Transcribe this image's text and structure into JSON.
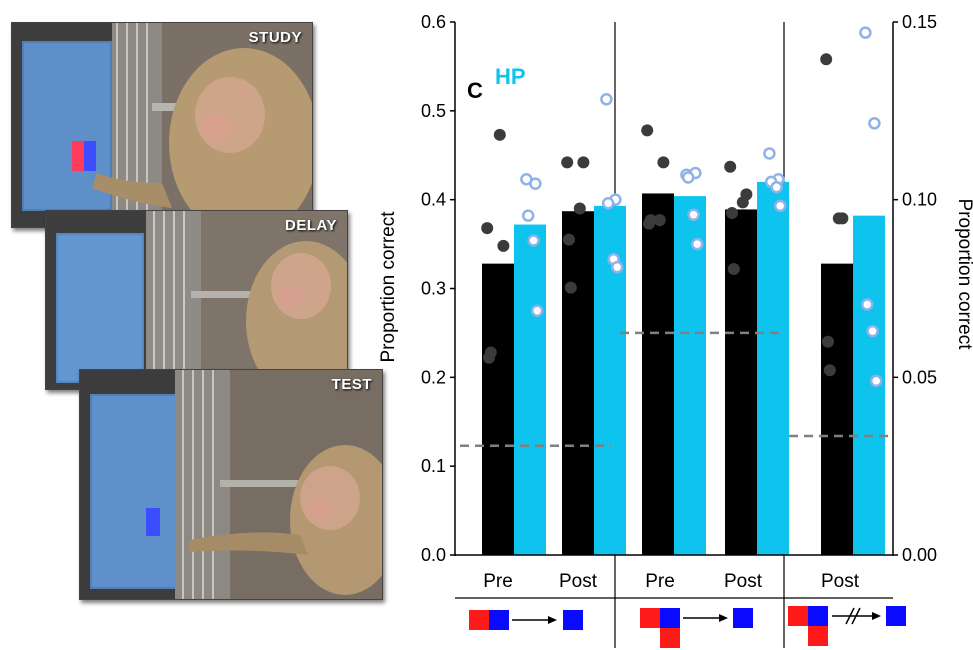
{
  "photos": [
    {
      "label": "STUDY",
      "has_stimulus": true,
      "stimulus": "red-blue"
    },
    {
      "label": "DELAY",
      "has_stimulus": false,
      "stimulus": "none"
    },
    {
      "label": "TEST",
      "has_stimulus": true,
      "stimulus": "blue"
    }
  ],
  "panel_letter": "C",
  "chart_data": {
    "type": "bar",
    "categories": [
      "Pre",
      "Post",
      "Pre",
      "Post",
      "Post"
    ],
    "series": [
      {
        "name": "",
        "color": "#000000",
        "values": [
          0.328,
          0.387,
          0.407,
          0.389,
          0.328
        ]
      },
      {
        "name": "HP",
        "color": "#0ec3ee",
        "values": [
          0.372,
          0.393,
          0.404,
          0.42,
          0.382
        ]
      }
    ],
    "individual_points": {
      "control": [
        [
          0.368,
          0.348,
          0.473,
          0.222,
          0.228
        ],
        [
          0.442,
          0.442,
          0.39,
          0.355,
          0.301
        ],
        [
          0.478,
          0.442,
          0.377,
          0.373,
          0.377
        ],
        [
          0.437,
          0.406,
          0.397,
          0.385,
          0.322
        ],
        [
          0.558,
          0.379,
          0.379,
          0.24,
          0.208
        ]
      ],
      "hp": [
        [
          0.423,
          0.418,
          0.382,
          0.354,
          0.275
        ],
        [
          0.513,
          0.4,
          0.396,
          0.333,
          0.324
        ],
        [
          0.428,
          0.43,
          0.425,
          0.383,
          0.35
        ],
        [
          0.452,
          0.423,
          0.42,
          0.414,
          0.393
        ],
        [
          0.588,
          0.486,
          0.282,
          0.252,
          0.196
        ]
      ]
    },
    "chance_levels": [
      0.123,
      0.25,
      0.134
    ],
    "ylabel": "Proportion correct",
    "ylabel_right": "Proportion correct",
    "ylim": [
      0,
      0.6
    ],
    "yticks": [
      "0.0",
      "0.1",
      "0.2",
      "0.3",
      "0.4",
      "0.5",
      "0.6"
    ],
    "ylim_right": [
      0,
      0.15
    ],
    "yticks_right": [
      "0.00",
      "0.05",
      "0.10",
      "0.15"
    ],
    "legend": [
      {
        "label": "HP",
        "color": "#0ec3ee"
      }
    ],
    "groups": [
      {
        "categories": [
          "Pre",
          "Post"
        ],
        "schematic": "two-square-study → test"
      },
      {
        "categories": [
          "Pre",
          "Post"
        ],
        "schematic": "three-square-study → test"
      },
      {
        "categories": [
          "Post"
        ],
        "schematic": "three-square-study //→ test"
      }
    ]
  }
}
